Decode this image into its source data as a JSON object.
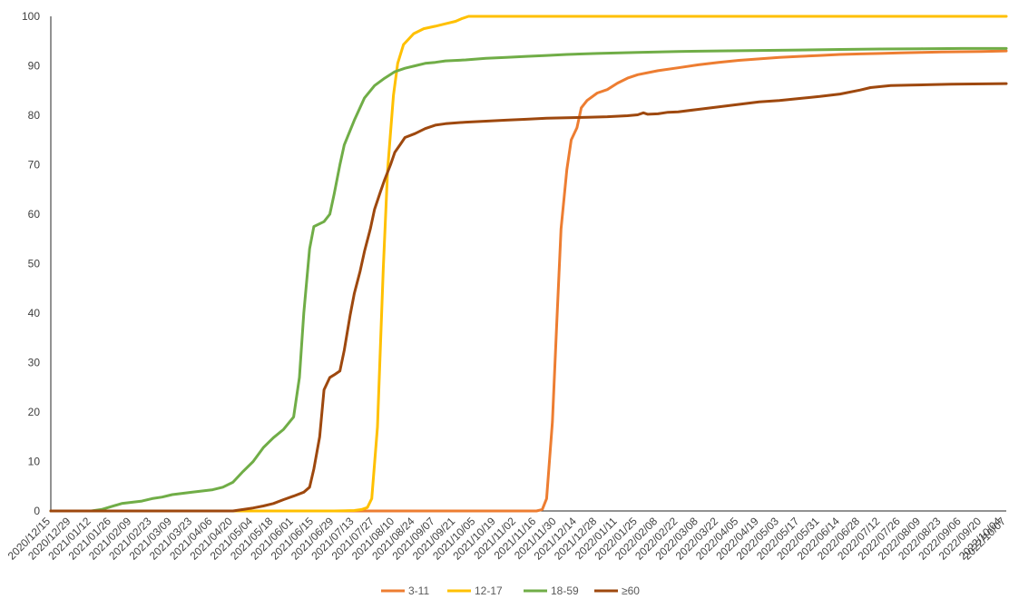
{
  "chart_data": {
    "type": "line",
    "ylim": [
      0,
      100
    ],
    "yticks": [
      0,
      10,
      20,
      30,
      40,
      50,
      60,
      70,
      80,
      90,
      100
    ],
    "grid": false,
    "legend_position": "bottom",
    "x_labels": [
      "2020/12/15",
      "2020/12/29",
      "2021/01/12",
      "2021/01/26",
      "2021/02/09",
      "2021/02/23",
      "2021/03/09",
      "2021/03/23",
      "2021/04/06",
      "2021/04/20",
      "2021/05/04",
      "2021/05/18",
      "2021/06/01",
      "2021/06/15",
      "2021/06/29",
      "2021/07/13",
      "2021/07/27",
      "2021/08/10",
      "2021/08/24",
      "2021/09/07",
      "2021/09/21",
      "2021/10/05",
      "2021/10/19",
      "2021/11/02",
      "2021/11/16",
      "2021/11/30",
      "2021/12/14",
      "2021/12/28",
      "2022/01/11",
      "2022/01/25",
      "2022/02/08",
      "2022/02/22",
      "2022/03/08",
      "2022/03/22",
      "2022/04/05",
      "2022/04/19",
      "2022/05/03",
      "2022/05/17",
      "2022/05/31",
      "2022/06/14",
      "2022/06/28",
      "2022/07/12",
      "2022/07/26",
      "2022/08/09",
      "2022/08/23",
      "2022/09/06",
      "2022/09/20",
      "2022/10/04",
      "2022/10/07"
    ],
    "series": [
      {
        "name": "3-11",
        "color": "#ED7D31",
        "points": [
          [
            "2020/12/15",
            0
          ],
          [
            "2021/11/16",
            0
          ],
          [
            "2021/11/20",
            0.3
          ],
          [
            "2021/11/23",
            2.5
          ],
          [
            "2021/11/27",
            18
          ],
          [
            "2021/11/30",
            38
          ],
          [
            "2021/12/03",
            57
          ],
          [
            "2021/12/07",
            69
          ],
          [
            "2021/12/10",
            75
          ],
          [
            "2021/12/14",
            77.5
          ],
          [
            "2021/12/17",
            81.5
          ],
          [
            "2021/12/21",
            83
          ],
          [
            "2021/12/28",
            84.5
          ],
          [
            "2022/01/04",
            85.2
          ],
          [
            "2022/01/11",
            86.5
          ],
          [
            "2022/01/18",
            87.5
          ],
          [
            "2022/01/25",
            88.2
          ],
          [
            "2022/02/08",
            89
          ],
          [
            "2022/02/22",
            89.6
          ],
          [
            "2022/03/08",
            90.2
          ],
          [
            "2022/03/22",
            90.7
          ],
          [
            "2022/04/05",
            91.1
          ],
          [
            "2022/04/19",
            91.4
          ],
          [
            "2022/05/03",
            91.7
          ],
          [
            "2022/05/17",
            91.9
          ],
          [
            "2022/05/31",
            92.1
          ],
          [
            "2022/06/14",
            92.3
          ],
          [
            "2022/06/28",
            92.4
          ],
          [
            "2022/07/12",
            92.5
          ],
          [
            "2022/07/26",
            92.6
          ],
          [
            "2022/08/09",
            92.7
          ],
          [
            "2022/08/23",
            92.8
          ],
          [
            "2022/09/06",
            92.85
          ],
          [
            "2022/09/20",
            92.9
          ],
          [
            "2022/10/07",
            93
          ]
        ]
      },
      {
        "name": "12-17",
        "color": "#FFC000",
        "points": [
          [
            "2020/12/15",
            0
          ],
          [
            "2021/06/29",
            0
          ],
          [
            "2021/07/13",
            0.1
          ],
          [
            "2021/07/18",
            0.3
          ],
          [
            "2021/07/22",
            0.7
          ],
          [
            "2021/07/25",
            2.5
          ],
          [
            "2021/07/29",
            17
          ],
          [
            "2021/08/02",
            49
          ],
          [
            "2021/08/05",
            69
          ],
          [
            "2021/08/09",
            84
          ],
          [
            "2021/08/12",
            90.5
          ],
          [
            "2021/08/16",
            94.3
          ],
          [
            "2021/08/23",
            96.5
          ],
          [
            "2021/08/30",
            97.5
          ],
          [
            "2021/09/07",
            98
          ],
          [
            "2021/09/14",
            98.5
          ],
          [
            "2021/09/21",
            99
          ],
          [
            "2021/09/25",
            99.5
          ],
          [
            "2021/09/30",
            100
          ],
          [
            "2022/10/07",
            100
          ]
        ]
      },
      {
        "name": "18-59",
        "color": "#70AD47",
        "points": [
          [
            "2020/12/15",
            0
          ],
          [
            "2021/01/12",
            0
          ],
          [
            "2021/01/19",
            0.3
          ],
          [
            "2021/02/02",
            1.5
          ],
          [
            "2021/02/16",
            2
          ],
          [
            "2021/02/23",
            2.5
          ],
          [
            "2021/03/02",
            2.8
          ],
          [
            "2021/03/09",
            3.3
          ],
          [
            "2021/03/23",
            3.8
          ],
          [
            "2021/04/06",
            4.3
          ],
          [
            "2021/04/13",
            4.8
          ],
          [
            "2021/04/20",
            5.8
          ],
          [
            "2021/04/27",
            8
          ],
          [
            "2021/05/04",
            10
          ],
          [
            "2021/05/11",
            12.8
          ],
          [
            "2021/05/18",
            14.8
          ],
          [
            "2021/05/25",
            16.5
          ],
          [
            "2021/06/01",
            19
          ],
          [
            "2021/06/05",
            27
          ],
          [
            "2021/06/08",
            40
          ],
          [
            "2021/06/12",
            53
          ],
          [
            "2021/06/15",
            57.5
          ],
          [
            "2021/06/22",
            58.5
          ],
          [
            "2021/06/26",
            60
          ],
          [
            "2021/06/29",
            64
          ],
          [
            "2021/07/03",
            70
          ],
          [
            "2021/07/06",
            74
          ],
          [
            "2021/07/13",
            79
          ],
          [
            "2021/07/20",
            83.5
          ],
          [
            "2021/07/27",
            86
          ],
          [
            "2021/08/03",
            87.5
          ],
          [
            "2021/08/10",
            88.8
          ],
          [
            "2021/08/17",
            89.5
          ],
          [
            "2021/08/24",
            90
          ],
          [
            "2021/08/31",
            90.5
          ],
          [
            "2021/09/07",
            90.7
          ],
          [
            "2021/09/14",
            91
          ],
          [
            "2021/09/28",
            91.2
          ],
          [
            "2021/10/12",
            91.5
          ],
          [
            "2021/10/26",
            91.7
          ],
          [
            "2021/11/09",
            91.9
          ],
          [
            "2021/11/23",
            92.1
          ],
          [
            "2021/12/07",
            92.3
          ],
          [
            "2021/12/28",
            92.5
          ],
          [
            "2022/01/25",
            92.7
          ],
          [
            "2022/02/22",
            92.9
          ],
          [
            "2022/03/22",
            93
          ],
          [
            "2022/04/19",
            93.1
          ],
          [
            "2022/05/17",
            93.2
          ],
          [
            "2022/06/14",
            93.3
          ],
          [
            "2022/07/12",
            93.4
          ],
          [
            "2022/08/09",
            93.45
          ],
          [
            "2022/09/06",
            93.5
          ],
          [
            "2022/10/07",
            93.5
          ]
        ]
      },
      {
        "name": "≥60",
        "color": "#9E480E",
        "points": [
          [
            "2020/12/15",
            0
          ],
          [
            "2021/04/20",
            0
          ],
          [
            "2021/04/27",
            0.3
          ],
          [
            "2021/05/04",
            0.6
          ],
          [
            "2021/05/11",
            1
          ],
          [
            "2021/05/18",
            1.5
          ],
          [
            "2021/05/25",
            2.3
          ],
          [
            "2021/06/01",
            3
          ],
          [
            "2021/06/08",
            3.8
          ],
          [
            "2021/06/12",
            4.8
          ],
          [
            "2021/06/15",
            8.5
          ],
          [
            "2021/06/19",
            15
          ],
          [
            "2021/06/22",
            24.5
          ],
          [
            "2021/06/26",
            27
          ],
          [
            "2021/06/29",
            27.5
          ],
          [
            "2021/07/03",
            28.3
          ],
          [
            "2021/07/06",
            32.5
          ],
          [
            "2021/07/10",
            39.5
          ],
          [
            "2021/07/13",
            44
          ],
          [
            "2021/07/17",
            48.5
          ],
          [
            "2021/07/20",
            52.5
          ],
          [
            "2021/07/24",
            57
          ],
          [
            "2021/07/27",
            61
          ],
          [
            "2021/07/31",
            64.5
          ],
          [
            "2021/08/03",
            67
          ],
          [
            "2021/08/07",
            70
          ],
          [
            "2021/08/10",
            72.5
          ],
          [
            "2021/08/14",
            74.2
          ],
          [
            "2021/08/17",
            75.5
          ],
          [
            "2021/08/24",
            76.3
          ],
          [
            "2021/08/31",
            77.3
          ],
          [
            "2021/09/07",
            78
          ],
          [
            "2021/09/14",
            78.3
          ],
          [
            "2021/09/28",
            78.6
          ],
          [
            "2021/10/12",
            78.8
          ],
          [
            "2021/10/26",
            79
          ],
          [
            "2021/11/09",
            79.2
          ],
          [
            "2021/11/23",
            79.4
          ],
          [
            "2021/12/07",
            79.5
          ],
          [
            "2021/12/21",
            79.6
          ],
          [
            "2022/01/04",
            79.7
          ],
          [
            "2022/01/18",
            79.9
          ],
          [
            "2022/01/25",
            80.1
          ],
          [
            "2022/01/29",
            80.5
          ],
          [
            "2022/02/01",
            80.2
          ],
          [
            "2022/02/08",
            80.3
          ],
          [
            "2022/02/15",
            80.6
          ],
          [
            "2022/02/22",
            80.7
          ],
          [
            "2022/03/08",
            81.2
          ],
          [
            "2022/03/22",
            81.7
          ],
          [
            "2022/04/05",
            82.2
          ],
          [
            "2022/04/19",
            82.7
          ],
          [
            "2022/05/03",
            83
          ],
          [
            "2022/05/17",
            83.4
          ],
          [
            "2022/05/31",
            83.8
          ],
          [
            "2022/06/14",
            84.3
          ],
          [
            "2022/06/28",
            85.1
          ],
          [
            "2022/07/05",
            85.6
          ],
          [
            "2022/07/19",
            86
          ],
          [
            "2022/08/02",
            86.1
          ],
          [
            "2022/08/16",
            86.2
          ],
          [
            "2022/08/30",
            86.3
          ],
          [
            "2022/10/07",
            86.4
          ]
        ]
      }
    ]
  }
}
